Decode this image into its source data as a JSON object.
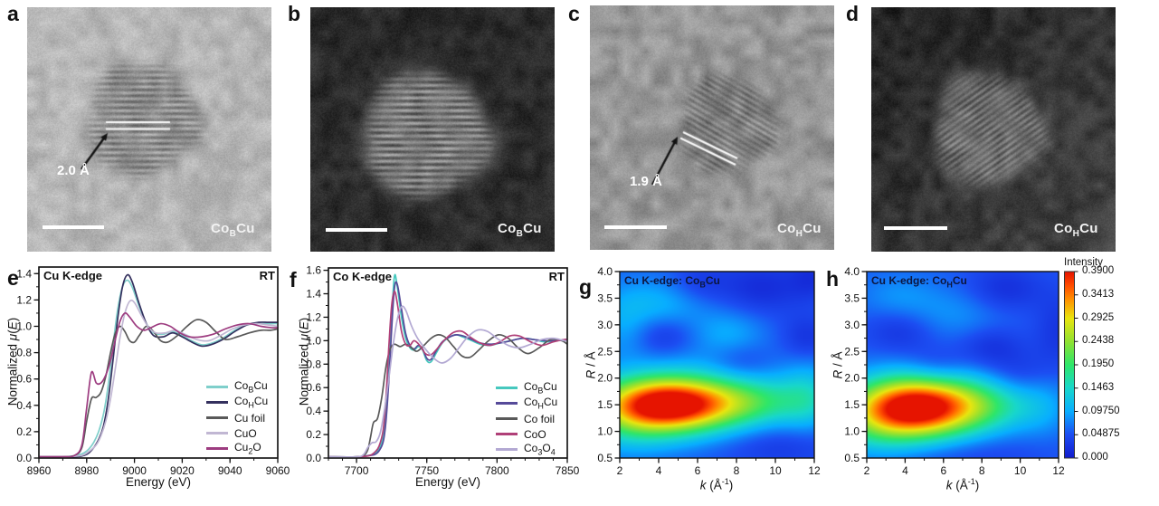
{
  "panel_letters": {
    "a": "a",
    "b": "b",
    "c": "c",
    "d": "d",
    "e": "e",
    "f": "f",
    "g": "g",
    "h": "h"
  },
  "micrographs": {
    "a": {
      "tag": "Co{B}Cu",
      "annotation": "2.0 Å"
    },
    "b": {
      "tag": "Co{B}Cu"
    },
    "c": {
      "tag": "Co{H}Cu",
      "annotation": "1.9 Å"
    },
    "d": {
      "tag": "Co{H}Cu"
    }
  },
  "chart_data": [
    {
      "id": "e",
      "type": "line",
      "title": "Cu K-edge",
      "corner_label": "RT",
      "xlabel": "Energy (eV)",
      "ylabel": "Normalized *μ*(*E*)",
      "xlim": [
        8960,
        9060
      ],
      "ylim": [
        0,
        1.45
      ],
      "xticks": [
        "8960",
        "8980",
        "9000",
        "9020",
        "9040",
        "9060"
      ],
      "yticks": [
        "0.0",
        "0.2",
        "0.4",
        "0.6",
        "0.8",
        "1.0",
        "1.2",
        "1.4"
      ],
      "x_minor_step": 10,
      "y_minor_step": 0.1,
      "legend_position": "bottom-right",
      "series": [
        {
          "name": "Co{B}Cu",
          "color": "#7fcfcb",
          "x": [
            8960,
            8970,
            8976,
            8979,
            8981,
            8983,
            8985,
            8987,
            8989,
            8991,
            8993,
            8995,
            8997,
            8999,
            9002,
            9005,
            9008,
            9012,
            9016,
            9020,
            9024,
            9028,
            9032,
            9037,
            9042,
            9047,
            9052,
            9056,
            9060
          ],
          "y": [
            0.01,
            0.01,
            0.02,
            0.04,
            0.07,
            0.12,
            0.2,
            0.33,
            0.55,
            0.85,
            1.13,
            1.3,
            1.35,
            1.3,
            1.15,
            1.02,
            0.95,
            0.94,
            0.96,
            0.93,
            0.89,
            0.86,
            0.87,
            0.91,
            0.97,
            1.01,
            1.02,
            1.02,
            1.02
          ]
        },
        {
          "name": "Co{H}Cu",
          "color": "#34305e",
          "x": [
            8960,
            8970,
            8976,
            8979,
            8981,
            8983,
            8985,
            8987,
            8989,
            8991,
            8993,
            8995,
            8997,
            8999,
            9002,
            9005,
            9008,
            9012,
            9016,
            9020,
            9024,
            9028,
            9032,
            9037,
            9042,
            9047,
            9052,
            9056,
            9060
          ],
          "y": [
            0.01,
            0.01,
            0.01,
            0.02,
            0.04,
            0.08,
            0.14,
            0.24,
            0.44,
            0.74,
            1.06,
            1.3,
            1.39,
            1.34,
            1.17,
            1.02,
            0.93,
            0.92,
            0.95,
            0.92,
            0.88,
            0.85,
            0.86,
            0.9,
            0.96,
            1.01,
            1.03,
            1.03,
            1.03
          ]
        },
        {
          "name": "Cu foil",
          "color": "#595959",
          "x": [
            8960,
            8970,
            8975,
            8978,
            8980,
            8982,
            8984,
            8986,
            8988,
            8990,
            8992,
            8994,
            8996,
            8998,
            9000,
            9002,
            9005,
            9008,
            9011,
            9014,
            9018,
            9022,
            9026,
            9030,
            9034,
            9038,
            9043,
            9048,
            9053,
            9057,
            9060
          ],
          "y": [
            0.01,
            0.01,
            0.02,
            0.08,
            0.28,
            0.45,
            0.46,
            0.5,
            0.62,
            0.8,
            0.95,
            1.0,
            0.96,
            0.89,
            0.88,
            0.93,
            1.0,
            0.96,
            0.89,
            0.88,
            0.93,
            1.0,
            1.05,
            1.03,
            0.96,
            0.9,
            0.92,
            0.95,
            0.97,
            0.97,
            0.98
          ]
        },
        {
          "name": "CuO",
          "color": "#c1b7d3",
          "x": [
            8960,
            8972,
            8978,
            8981,
            8984,
            8986,
            8988,
            8990,
            8992,
            8994,
            8996,
            8998,
            9000,
            9003,
            9006,
            9009,
            9013,
            9017,
            9021,
            9026,
            9031,
            9036,
            9041,
            9046,
            9051,
            9056,
            9060
          ],
          "y": [
            0.01,
            0.01,
            0.02,
            0.05,
            0.1,
            0.17,
            0.28,
            0.45,
            0.68,
            0.92,
            1.1,
            1.19,
            1.18,
            1.08,
            0.99,
            0.95,
            0.95,
            0.97,
            0.94,
            0.9,
            0.89,
            0.93,
            0.98,
            1.01,
            1.02,
            1.01,
            1.0
          ]
        },
        {
          "name": "Cu{2}O",
          "color": "#9d3c80",
          "x": [
            8960,
            8970,
            8975,
            8978,
            8980,
            8982,
            8984,
            8986,
            8988,
            8990,
            8992,
            8994,
            8996,
            8998,
            9001,
            9004,
            9007,
            9011,
            9015,
            9019,
            9023,
            9028,
            9033,
            9038,
            9043,
            9048,
            9053,
            9057,
            9060
          ],
          "y": [
            0.01,
            0.01,
            0.02,
            0.1,
            0.38,
            0.65,
            0.57,
            0.57,
            0.63,
            0.74,
            0.9,
            1.04,
            1.1,
            1.07,
            1.0,
            0.97,
            0.99,
            1.02,
            1.0,
            0.95,
            0.92,
            0.92,
            0.94,
            0.98,
            1.01,
            1.02,
            1.0,
            0.99,
            0.99
          ]
        }
      ]
    },
    {
      "id": "f",
      "type": "line",
      "title": "Co K-edge",
      "corner_label": "RT",
      "xlabel": "Energy (eV)",
      "ylabel": "Normalized *μ*(*E*)",
      "xlim": [
        7680,
        7850
      ],
      "ylim": [
        0,
        1.62
      ],
      "xticks": [
        "7700",
        "7750",
        "7800",
        "7850"
      ],
      "yticks": [
        "0.0",
        "0.2",
        "0.4",
        "0.6",
        "0.8",
        "1.0",
        "1.2",
        "1.4",
        "1.6"
      ],
      "x_minor_step": 10,
      "y_minor_step": 0.1,
      "legend_position": "bottom-right",
      "series": [
        {
          "name": "Co{B}Cu",
          "color": "#46c8be",
          "x": [
            7680,
            7700,
            7708,
            7713,
            7716,
            7719,
            7721,
            7723,
            7725,
            7727,
            7729,
            7732,
            7735,
            7738,
            7741,
            7744,
            7747,
            7750,
            7753,
            7757,
            7761,
            7766,
            7771,
            7776,
            7782,
            7788,
            7795,
            7802,
            7810,
            7818,
            7826,
            7834,
            7842,
            7850
          ],
          "y": [
            0.01,
            0.01,
            0.02,
            0.04,
            0.08,
            0.18,
            0.38,
            0.75,
            1.2,
            1.55,
            1.46,
            1.2,
            1.02,
            0.94,
            0.92,
            0.95,
            0.92,
            0.83,
            0.82,
            0.9,
            0.98,
            1.03,
            1.05,
            1.03,
            1.0,
            0.97,
            0.96,
            0.98,
            1.0,
            1.02,
            1.01,
            0.99,
            1.0,
            1.01
          ]
        },
        {
          "name": "Co{H}Cu",
          "color": "#564a99",
          "x": [
            7680,
            7700,
            7708,
            7713,
            7716,
            7719,
            7721,
            7723,
            7725,
            7727,
            7729,
            7732,
            7735,
            7738,
            7741,
            7744,
            7747,
            7750,
            7753,
            7757,
            7761,
            7766,
            7771,
            7776,
            7782,
            7788,
            7795,
            7802,
            7810,
            7818,
            7826,
            7834,
            7842,
            7850
          ],
          "y": [
            0.01,
            0.01,
            0.02,
            0.03,
            0.06,
            0.14,
            0.32,
            0.66,
            1.1,
            1.45,
            1.48,
            1.27,
            1.06,
            0.96,
            0.93,
            0.96,
            0.93,
            0.85,
            0.84,
            0.92,
            0.99,
            1.03,
            1.05,
            1.04,
            1.01,
            0.98,
            0.97,
            0.98,
            1.0,
            1.02,
            1.01,
            1.0,
            1.0,
            1.01
          ]
        },
        {
          "name": "Co foil",
          "color": "#595959",
          "x": [
            7680,
            7700,
            7705,
            7708,
            7710,
            7712,
            7715,
            7718,
            7721,
            7724,
            7727,
            7731,
            7735,
            7739,
            7743,
            7748,
            7753,
            7758,
            7763,
            7769,
            7775,
            7781,
            7787,
            7794,
            7801,
            7808,
            7815,
            7822,
            7830,
            7838,
            7846,
            7850
          ],
          "y": [
            0.01,
            0.01,
            0.02,
            0.07,
            0.18,
            0.3,
            0.34,
            0.52,
            0.78,
            0.93,
            0.97,
            0.95,
            0.97,
            0.94,
            0.91,
            0.96,
            1.02,
            1.05,
            1.03,
            0.95,
            0.87,
            0.86,
            0.92,
            1.0,
            1.05,
            1.02,
            0.94,
            0.89,
            0.94,
            1.01,
            1.0,
            0.97
          ]
        },
        {
          "name": "CoO",
          "color": "#b04078",
          "x": [
            7680,
            7700,
            7709,
            7713,
            7716,
            7719,
            7721,
            7723,
            7725,
            7727,
            7729,
            7732,
            7735,
            7738,
            7741,
            7745,
            7749,
            7753,
            7758,
            7763,
            7769,
            7775,
            7781,
            7788,
            7795,
            7802,
            7809,
            7816,
            7824,
            7832,
            7840,
            7848,
            7850
          ],
          "y": [
            0.01,
            0.01,
            0.02,
            0.05,
            0.1,
            0.24,
            0.52,
            0.95,
            1.3,
            1.42,
            1.32,
            1.08,
            0.97,
            0.96,
            1.0,
            0.96,
            0.89,
            0.88,
            0.94,
            1.01,
            1.07,
            1.08,
            1.03,
            0.98,
            0.96,
            0.99,
            1.04,
            1.04,
            0.99,
            0.96,
            0.99,
            1.01,
            1.01
          ]
        },
        {
          "name": "Co{3}O{4}",
          "color": "#b3a9d3",
          "x": [
            7680,
            7700,
            7705,
            7708,
            7711,
            7714,
            7717,
            7720,
            7723,
            7726,
            7729,
            7732,
            7735,
            7739,
            7743,
            7747,
            7751,
            7756,
            7761,
            7767,
            7773,
            7779,
            7786,
            7793,
            7800,
            7808,
            7816,
            7824,
            7832,
            7840,
            7848,
            7850
          ],
          "y": [
            0.01,
            0.01,
            0.03,
            0.09,
            0.13,
            0.14,
            0.22,
            0.42,
            0.68,
            0.96,
            1.18,
            1.29,
            1.26,
            1.13,
            1.03,
            0.96,
            0.9,
            0.84,
            0.81,
            0.85,
            0.94,
            1.03,
            1.09,
            1.08,
            1.02,
            0.96,
            0.94,
            0.97,
            1.01,
            1.02,
            1.0,
            1.0
          ]
        }
      ]
    },
    {
      "id": "g",
      "type": "heatmap",
      "title": "Cu K-edge: Co{B}Cu",
      "xlabel": "*k* (Å[-1])",
      "ylabel": "*R* / Å",
      "xlim": [
        2,
        12
      ],
      "ylim": [
        0.5,
        4.0
      ],
      "xticks": [
        "2",
        "4",
        "6",
        "8",
        "10",
        "12"
      ],
      "yticks": [
        "0.5",
        "1.0",
        "1.5",
        "2.0",
        "2.5",
        "3.0",
        "3.5",
        "4.0"
      ],
      "x_minor_step": 1,
      "y_minor_step": 0.25,
      "base": 0.055,
      "zmax": 0.39,
      "blobs": [
        [
          4.6,
          1.5,
          2.4,
          0.36,
          0.37
        ],
        [
          9.2,
          1.55,
          2.0,
          0.32,
          0.09
        ],
        [
          2.4,
          1.2,
          1.8,
          0.45,
          0.06
        ],
        [
          11.7,
          1.65,
          1.0,
          0.45,
          0.06
        ],
        [
          4.0,
          3.4,
          1.8,
          0.35,
          0.048
        ],
        [
          7.6,
          2.85,
          1.3,
          0.3,
          0.038
        ],
        [
          2.2,
          2.95,
          0.9,
          0.45,
          0.03
        ],
        [
          6.4,
          2.1,
          3.0,
          0.45,
          0.02
        ],
        [
          4.3,
          2.8,
          1.1,
          0.26,
          -0.034
        ],
        [
          8.2,
          2.3,
          1.1,
          0.26,
          -0.028
        ],
        [
          9.3,
          3.7,
          1.6,
          0.35,
          -0.038
        ],
        [
          11.6,
          2.75,
          0.9,
          0.3,
          -0.033
        ],
        [
          6.0,
          3.78,
          1.1,
          0.28,
          -0.028
        ],
        [
          10.4,
          0.72,
          2.2,
          0.3,
          -0.026
        ],
        [
          11.9,
          3.9,
          0.8,
          0.3,
          -0.03
        ]
      ]
    },
    {
      "id": "h",
      "type": "heatmap",
      "title": "Cu K-edge: Co{H}Cu",
      "xlabel": "*k* (Å[-1])",
      "ylabel": "*R* / Å",
      "xlim": [
        2,
        12
      ],
      "ylim": [
        0.5,
        4.0
      ],
      "xticks": [
        "2",
        "4",
        "6",
        "8",
        "10",
        "12"
      ],
      "yticks": [
        "0.5",
        "1.0",
        "1.5",
        "2.0",
        "2.5",
        "3.0",
        "3.5",
        "4.0"
      ],
      "x_minor_step": 1,
      "y_minor_step": 0.25,
      "base": 0.055,
      "zmax": 0.39,
      "blobs": [
        [
          4.5,
          1.45,
          2.3,
          0.4,
          0.37
        ],
        [
          8.3,
          1.5,
          2.0,
          0.35,
          0.08
        ],
        [
          2.3,
          1.05,
          1.8,
          0.4,
          0.05
        ],
        [
          6.5,
          3.2,
          2.2,
          0.35,
          0.03
        ],
        [
          3.6,
          3.55,
          1.4,
          0.3,
          0.025
        ],
        [
          11.2,
          1.45,
          1.0,
          0.4,
          0.025
        ],
        [
          3.8,
          2.9,
          1.3,
          0.3,
          -0.034
        ],
        [
          5.6,
          2.2,
          1.1,
          0.26,
          -0.028
        ],
        [
          8.5,
          2.6,
          1.2,
          0.28,
          -0.033
        ],
        [
          9.2,
          3.65,
          1.4,
          0.32,
          -0.038
        ],
        [
          9.9,
          2.05,
          1.2,
          0.3,
          -0.026
        ],
        [
          12.0,
          2.9,
          0.9,
          0.5,
          -0.03
        ],
        [
          7.0,
          0.6,
          3.0,
          0.25,
          -0.02
        ]
      ],
      "colorbar": {
        "label": "Intensity",
        "ticks": [
          "0.3900",
          "0.3413",
          "0.2925",
          "0.2438",
          "0.1950",
          "0.1463",
          "0.09750",
          "0.04875",
          "0.000"
        ]
      }
    }
  ]
}
